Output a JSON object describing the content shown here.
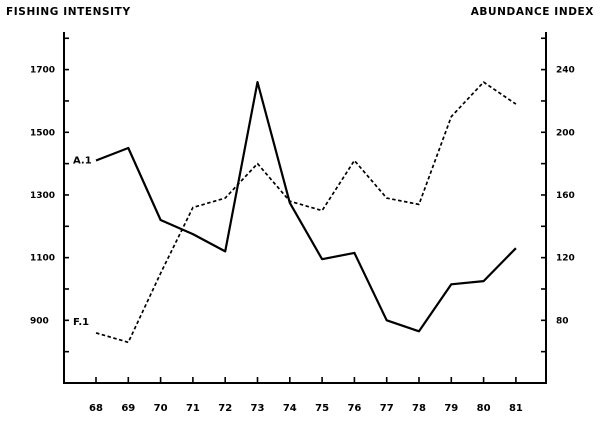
{
  "chart_data": {
    "type": "line",
    "title": "",
    "y_left_label": "FISHING INTENSITY",
    "y_right_label": "ABUNDANCE INDEX",
    "x_ticks": [
      "68",
      "69",
      "70",
      "71",
      "72",
      "73",
      "74",
      "75",
      "76",
      "77",
      "78",
      "79",
      "80",
      "81"
    ],
    "y_left_ticks": [
      "900",
      "1100",
      "1300",
      "1500",
      "1700"
    ],
    "y_right_ticks": [
      "80",
      "120",
      "160",
      "200",
      "240"
    ],
    "y_left_range": [
      700,
      1820
    ],
    "y_right_range": [
      40,
      264
    ],
    "series": [
      {
        "name": "A.1",
        "style": "solid",
        "axis": "right",
        "x": [
          "68",
          "69",
          "70",
          "71",
          "72",
          "73",
          "74",
          "75",
          "76",
          "77",
          "78",
          "79",
          "80",
          "81"
        ],
        "values": [
          182,
          190,
          144,
          135,
          124,
          232,
          155,
          119,
          123,
          80,
          73,
          103,
          105,
          126
        ]
      },
      {
        "name": "F.1",
        "style": "dashed",
        "axis": "left",
        "x": [
          "68",
          "69",
          "70",
          "71",
          "72",
          "73",
          "74",
          "75",
          "76",
          "77",
          "78",
          "79",
          "80",
          "81"
        ],
        "values": [
          860,
          830,
          1050,
          1260,
          1290,
          1400,
          1280,
          1250,
          1410,
          1290,
          1270,
          1550,
          1660,
          1590
        ]
      }
    ],
    "grid": false,
    "legend": "inline labels at left"
  }
}
